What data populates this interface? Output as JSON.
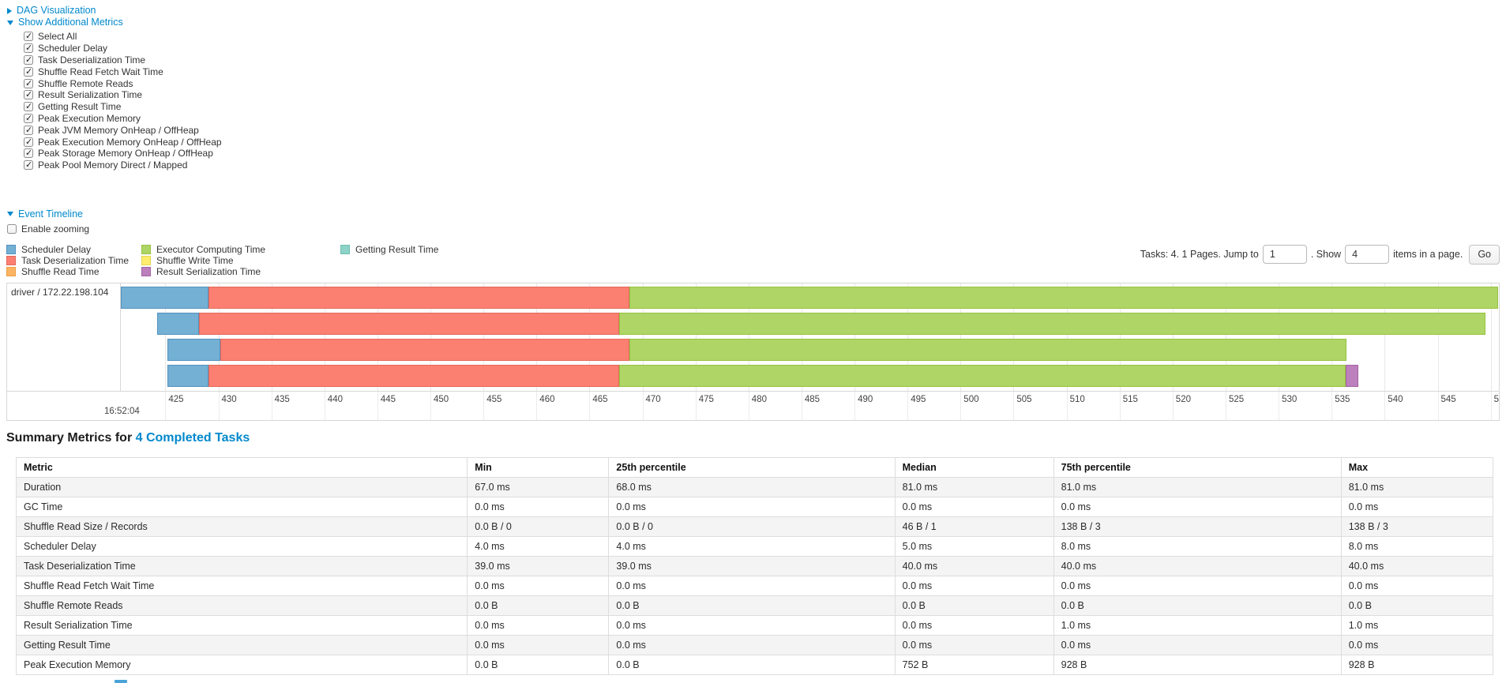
{
  "colors": {
    "link": "#0088cc",
    "table_stripe": "#f4f4f4",
    "grid": "#e8e8e8",
    "chart_border": "#d7d7d7"
  },
  "toggles": {
    "dag": "DAG Visualization",
    "additional_metrics": "Show Additional Metrics",
    "event_timeline": "Event Timeline"
  },
  "metric_checkboxes": [
    "Select All",
    "Scheduler Delay",
    "Task Deserialization Time",
    "Shuffle Read Fetch Wait Time",
    "Shuffle Remote Reads",
    "Result Serialization Time",
    "Getting Result Time",
    "Peak Execution Memory",
    "Peak JVM Memory OnHeap / OffHeap",
    "Peak Execution Memory OnHeap / OffHeap",
    "Peak Storage Memory OnHeap / OffHeap",
    "Peak Pool Memory Direct / Mapped"
  ],
  "enable_zooming_label": "Enable zooming",
  "series": [
    {
      "id": "scheduler-delay",
      "label": "Scheduler Delay",
      "color": "#74b0d4",
      "border": "#5291bd"
    },
    {
      "id": "task-deserialization",
      "label": "Task Deserialization Time",
      "color": "#FB8072",
      "border": "#e4685b"
    },
    {
      "id": "shuffle-read",
      "label": "Shuffle Read Time",
      "color": "#FDB462",
      "border": "#eb9f44"
    },
    {
      "id": "executor-computing",
      "label": "Executor Computing Time",
      "color": "#aed566",
      "border": "#97c23e"
    },
    {
      "id": "shuffle-write",
      "label": "Shuffle Write Time",
      "color": "#FFED6F",
      "border": "#e6d44e"
    },
    {
      "id": "result-serialization",
      "label": "Result Serialization Time",
      "color": "#BC80BD",
      "border": "#a464a5"
    },
    {
      "id": "getting-result",
      "label": "Getting Result Time",
      "color": "#8DD3C7",
      "border": "#6fbfb1"
    }
  ],
  "legend_columns": [
    [
      "scheduler-delay",
      "task-deserialization",
      "shuffle-read"
    ],
    [
      "executor-computing",
      "shuffle-write",
      "result-serialization"
    ],
    [
      "getting-result"
    ]
  ],
  "pager": {
    "prefix": "Tasks: 4. 1 Pages. Jump to",
    "jump_value": "1",
    "mid": ". Show",
    "show_value": "4",
    "suffix": "items in a page.",
    "go_label": "Go"
  },
  "chart_data": {
    "type": "timeline-gantt",
    "row_label": "driver / 172.22.198.104",
    "axis": {
      "min": 420.8,
      "max": 550.7,
      "tick_start": 425,
      "tick_end": 550,
      "tick_step": 5,
      "major_label": "16:52:04"
    },
    "tasks": [
      {
        "segments": [
          {
            "series": "scheduler-delay",
            "start": 420.8,
            "end": 429.1
          },
          {
            "series": "task-deserialization",
            "start": 429.1,
            "end": 468.8
          },
          {
            "series": "executor-computing",
            "start": 468.8,
            "end": 550.7
          }
        ]
      },
      {
        "segments": [
          {
            "series": "scheduler-delay",
            "start": 424.2,
            "end": 428.2
          },
          {
            "series": "task-deserialization",
            "start": 428.2,
            "end": 467.8
          },
          {
            "series": "executor-computing",
            "start": 467.8,
            "end": 549.5
          }
        ]
      },
      {
        "segments": [
          {
            "series": "scheduler-delay",
            "start": 425.2,
            "end": 430.2
          },
          {
            "series": "task-deserialization",
            "start": 430.2,
            "end": 468.8
          },
          {
            "series": "executor-computing",
            "start": 468.8,
            "end": 536.4
          }
        ]
      },
      {
        "segments": [
          {
            "series": "scheduler-delay",
            "start": 425.2,
            "end": 429.1
          },
          {
            "series": "task-deserialization",
            "start": 429.1,
            "end": 467.8
          },
          {
            "series": "executor-computing",
            "start": 467.8,
            "end": 536.3
          },
          {
            "series": "result-serialization",
            "start": 536.3,
            "end": 537.5
          }
        ]
      }
    ]
  },
  "summary": {
    "heading_prefix": "Summary Metrics for ",
    "heading_link": "4 Completed Tasks",
    "table": {
      "headers": [
        "Metric",
        "Min",
        "25th percentile",
        "Median",
        "75th percentile",
        "Max"
      ],
      "col_widths_pct": [
        30.55,
        9.58,
        19.37,
        10.75,
        19.47,
        10.28
      ],
      "rows": [
        {
          "metric": "Duration",
          "values": [
            "67.0 ms",
            "68.0 ms",
            "81.0 ms",
            "81.0 ms",
            "81.0 ms"
          ]
        },
        {
          "metric": "GC Time",
          "values": [
            "0.0 ms",
            "0.0 ms",
            "0.0 ms",
            "0.0 ms",
            "0.0 ms"
          ]
        },
        {
          "metric": "Shuffle Read Size / Records",
          "values": [
            "0.0 B / 0",
            "0.0 B / 0",
            "46 B / 1",
            "138 B / 3",
            "138 B / 3"
          ]
        },
        {
          "metric": "Scheduler Delay",
          "values": [
            "4.0 ms",
            "4.0 ms",
            "5.0 ms",
            "8.0 ms",
            "8.0 ms"
          ]
        },
        {
          "metric": "Task Deserialization Time",
          "values": [
            "39.0 ms",
            "39.0 ms",
            "40.0 ms",
            "40.0 ms",
            "40.0 ms"
          ]
        },
        {
          "metric": "Shuffle Read Fetch Wait Time",
          "values": [
            "0.0 ms",
            "0.0 ms",
            "0.0 ms",
            "0.0 ms",
            "0.0 ms"
          ]
        },
        {
          "metric": "Shuffle Remote Reads",
          "values": [
            "0.0 B",
            "0.0 B",
            "0.0 B",
            "0.0 B",
            "0.0 B"
          ]
        },
        {
          "metric": "Result Serialization Time",
          "values": [
            "0.0 ms",
            "0.0 ms",
            "0.0 ms",
            "1.0 ms",
            "1.0 ms"
          ]
        },
        {
          "metric": "Getting Result Time",
          "values": [
            "0.0 ms",
            "0.0 ms",
            "0.0 ms",
            "0.0 ms",
            "0.0 ms"
          ]
        },
        {
          "metric": "Peak Execution Memory",
          "values": [
            "0.0 B",
            "0.0 B",
            "752 B",
            "928 B",
            "928 B"
          ]
        }
      ]
    }
  }
}
